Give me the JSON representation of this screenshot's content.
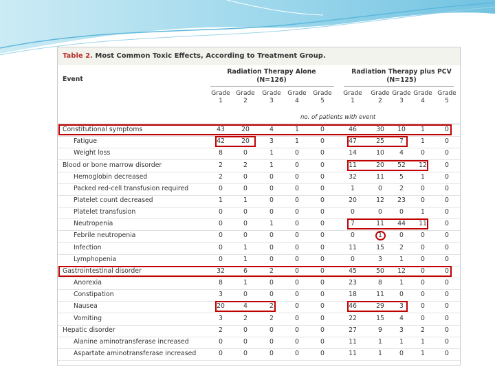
{
  "table": {
    "label": "Table 2.",
    "title": "Most Common Toxic Effects, According to Treatment Group.",
    "event_header": "Event",
    "groups": [
      {
        "name": "Radiation Therapy Alone",
        "n": "(N=126)",
        "grades": [
          "Grade 1",
          "Grade 2",
          "Grade 3",
          "Grade 4",
          "Grade 5"
        ]
      },
      {
        "name": "Radiation Therapy plus PCV",
        "n": "(N=125)",
        "grades": [
          "Grade 1",
          "Grade 2",
          "Grade 3",
          "Grade 4",
          "Grade 5"
        ]
      }
    ],
    "units": "no. of patients with event",
    "sections": [
      {
        "event": "Constitutional symptoms",
        "values": [
          43,
          20,
          4,
          1,
          0,
          46,
          30,
          10,
          1,
          0
        ],
        "items": [
          {
            "event": "Fatigue",
            "values": [
              42,
              20,
              3,
              1,
              0,
              47,
              25,
              7,
              1,
              0
            ]
          },
          {
            "event": "Weight loss",
            "values": [
              8,
              0,
              1,
              0,
              0,
              14,
              10,
              4,
              0,
              0
            ]
          }
        ]
      },
      {
        "event": "Blood or bone marrow disorder",
        "values": [
          2,
          2,
          1,
          0,
          0,
          11,
          20,
          52,
          12,
          0
        ],
        "items": [
          {
            "event": "Hemoglobin decreased",
            "values": [
              2,
              0,
              0,
              0,
              0,
              32,
              11,
              5,
              1,
              0
            ]
          },
          {
            "event": "Packed red-cell transfusion required",
            "values": [
              0,
              0,
              0,
              0,
              0,
              1,
              0,
              2,
              0,
              0
            ]
          },
          {
            "event": "Platelet count decreased",
            "values": [
              1,
              1,
              0,
              0,
              0,
              20,
              12,
              23,
              0,
              0
            ]
          },
          {
            "event": "Platelet transfusion",
            "values": [
              0,
              0,
              0,
              0,
              0,
              0,
              0,
              0,
              1,
              0
            ]
          },
          {
            "event": "Neutropenia",
            "values": [
              0,
              0,
              1,
              0,
              0,
              7,
              11,
              44,
              11,
              0
            ]
          },
          {
            "event": "Febrile neutropenia",
            "values": [
              0,
              0,
              0,
              0,
              0,
              0,
              1,
              0,
              0,
              0
            ]
          },
          {
            "event": "Infection",
            "values": [
              0,
              1,
              0,
              0,
              0,
              11,
              15,
              2,
              0,
              0
            ]
          },
          {
            "event": "Lymphopenia",
            "values": [
              0,
              1,
              0,
              0,
              0,
              0,
              3,
              1,
              0,
              0
            ]
          }
        ]
      },
      {
        "event": "Gastrointestinal disorder",
        "values": [
          32,
          6,
          2,
          0,
          0,
          45,
          50,
          12,
          0,
          0
        ],
        "items": [
          {
            "event": "Anorexia",
            "values": [
              8,
              1,
              0,
              0,
              0,
              23,
              8,
              1,
              0,
              0
            ]
          },
          {
            "event": "Constipation",
            "values": [
              3,
              0,
              0,
              0,
              0,
              18,
              11,
              0,
              0,
              0
            ]
          },
          {
            "event": "Nausea",
            "values": [
              20,
              4,
              2,
              0,
              0,
              46,
              29,
              3,
              0,
              0
            ]
          },
          {
            "event": "Vomiting",
            "values": [
              3,
              2,
              2,
              0,
              0,
              22,
              15,
              4,
              0,
              0
            ]
          }
        ]
      },
      {
        "event": "Hepatic disorder",
        "values": [
          2,
          0,
          0,
          0,
          0,
          27,
          9,
          3,
          2,
          0
        ],
        "items": [
          {
            "event": "Alanine aminotransferase increased",
            "values": [
              0,
              0,
              0,
              0,
              0,
              11,
              1,
              1,
              1,
              0
            ]
          },
          {
            "event": "Aspartate aminotransferase increased",
            "values": [
              0,
              0,
              0,
              0,
              0,
              11,
              1,
              0,
              1,
              0
            ]
          }
        ]
      }
    ]
  }
}
